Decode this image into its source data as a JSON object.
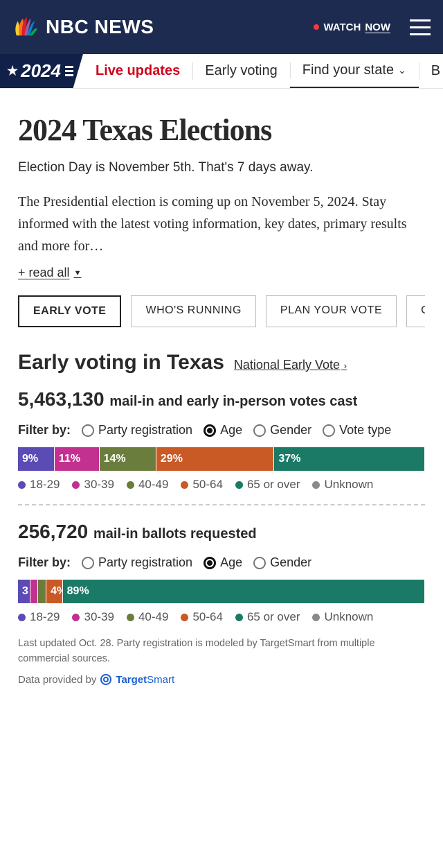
{
  "header": {
    "brand": "NBC NEWS",
    "watch_label": "WATCH",
    "watch_now": "NOW",
    "peacock_colors": [
      "#fccb2f",
      "#f37324",
      "#e31b23",
      "#9e5ba5",
      "#0089d0",
      "#00a94f"
    ]
  },
  "nav": {
    "badge_year": "2024",
    "items": [
      {
        "label": "Live updates",
        "kind": "live"
      },
      {
        "label": "Early voting",
        "kind": "normal"
      },
      {
        "label": "Find your state",
        "kind": "dropdown",
        "active": true
      },
      {
        "label": "B",
        "kind": "cut"
      }
    ]
  },
  "page": {
    "title": "2024 Texas Elections",
    "subtitle": "Election Day is November 5th. That's 7 days away.",
    "description": "The Presidential election is coming up on November 5, 2024. Stay informed with the latest voting information, key dates, primary results and more for…",
    "read_all": "+ read all"
  },
  "tabs": [
    {
      "label": "EARLY VOTE",
      "active": true
    },
    {
      "label": "WHO'S RUNNING"
    },
    {
      "label": "PLAN YOUR VOTE"
    },
    {
      "label": "CURR"
    }
  ],
  "colors": {
    "age": {
      "18-29": "#5b4bb5",
      "30-39": "#c2318f",
      "40-49": "#6b7d3d",
      "50-64": "#c95a25",
      "65+": "#1a7a66",
      "unknown": "#8a8a8a"
    }
  },
  "early": {
    "section_title": "Early voting in Texas",
    "national_link": "National Early Vote",
    "cast_number": "5,463,130",
    "cast_rest": "mail-in and early in-person votes cast",
    "filter_label": "Filter by:",
    "filters": [
      "Party registration",
      "Age",
      "Gender",
      "Vote type"
    ],
    "filter_selected": "Age",
    "segments": [
      {
        "label": "9%",
        "pct": 9,
        "key": "18-29"
      },
      {
        "label": "11%",
        "pct": 11,
        "key": "30-39"
      },
      {
        "label": "14%",
        "pct": 14,
        "key": "40-49"
      },
      {
        "label": "29%",
        "pct": 29,
        "key": "50-64"
      },
      {
        "label": "37%",
        "pct": 37,
        "key": "65+"
      }
    ],
    "legend": [
      {
        "label": "18-29",
        "key": "18-29"
      },
      {
        "label": "30-39",
        "key": "30-39"
      },
      {
        "label": "40-49",
        "key": "40-49"
      },
      {
        "label": "50-64",
        "key": "50-64"
      },
      {
        "label": "65 or over",
        "key": "65+"
      },
      {
        "label": "Unknown",
        "key": "unknown"
      }
    ]
  },
  "mail": {
    "number": "256,720",
    "rest": "mail-in ballots requested",
    "filter_label": "Filter by:",
    "filters": [
      "Party registration",
      "Age",
      "Gender"
    ],
    "filter_selected": "Age",
    "segments": [
      {
        "label": "3",
        "pct": 3,
        "key": "18-29"
      },
      {
        "label": "",
        "pct": 2,
        "key": "30-39"
      },
      {
        "label": "",
        "pct": 2,
        "key": "40-49"
      },
      {
        "label": "4%",
        "pct": 4,
        "key": "50-64"
      },
      {
        "label": "89%",
        "pct": 89,
        "key": "65+"
      }
    ],
    "legend": [
      {
        "label": "18-29",
        "key": "18-29"
      },
      {
        "label": "30-39",
        "key": "30-39"
      },
      {
        "label": "40-49",
        "key": "40-49"
      },
      {
        "label": "50-64",
        "key": "50-64"
      },
      {
        "label": "65 or over",
        "key": "65+"
      },
      {
        "label": "Unknown",
        "key": "unknown"
      }
    ]
  },
  "foot": {
    "note": "Last updated Oct. 28. Party registration is modeled by TargetSmart from multiple commercial sources.",
    "provided": "Data provided by",
    "provider": "TargetSmart"
  }
}
